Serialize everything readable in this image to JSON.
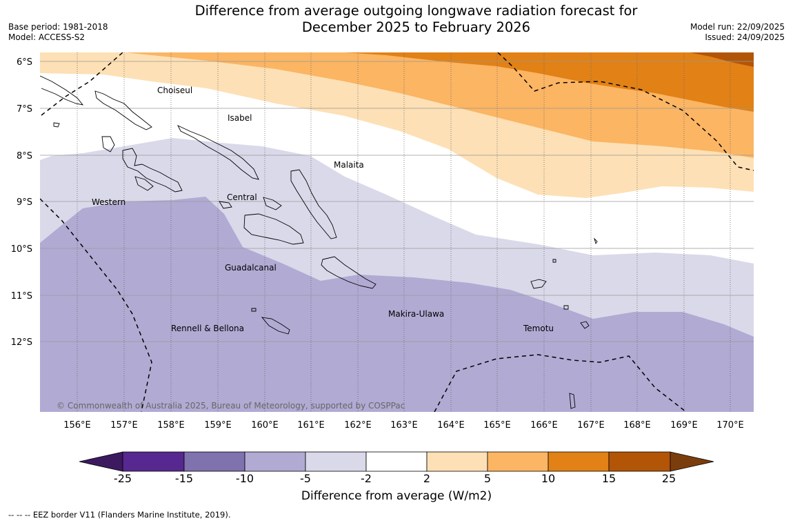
{
  "title_line1": "Difference from average outgoing longwave radiation forecast for",
  "title_line2": "December 2025 to February 2026",
  "base_period": "Base period: 1981-2018",
  "model": "Model: ACCESS-S2",
  "model_run": "Model run: 22/09/2025",
  "issued": "Issued: 24/09/2025",
  "lon_labels": [
    "156°E",
    "157°E",
    "158°E",
    "159°E",
    "160°E",
    "161°E",
    "162°E",
    "163°E",
    "164°E",
    "165°E",
    "166°E",
    "167°E",
    "168°E",
    "169°E",
    "170°E"
  ],
  "lat_labels": [
    "6°S",
    "7°S",
    "8°S",
    "9°S",
    "10°S",
    "11°S",
    "12°S"
  ],
  "place_names": [
    "Choiseul",
    "Isabel",
    "Malaita",
    "Western",
    "Central",
    "Guadalcanal",
    "Makira-Ulawa",
    "Rennell & Bellona",
    "Temotu"
  ],
  "copyright": "© Commonwealth of Australia 2025, Bureau of Meteorology, supported by COSPPac",
  "colorbar": {
    "ticks": [
      "-25",
      "-15",
      "-10",
      "-5",
      "-2",
      "2",
      "5",
      "10",
      "15",
      "25"
    ],
    "colors": [
      "#3d1a60",
      "#57288f",
      "#8072ae",
      "#b1aad3",
      "#d9d9ea",
      "#ffffff",
      "#fde0b5",
      "#fbb563",
      "#e18116",
      "#b25507",
      "#7c3d0d"
    ],
    "label": "Difference from average (W/m2)"
  },
  "footnote": "--  --  -- EEZ border V11 (Flanders Marine Institute, 2019)."
}
